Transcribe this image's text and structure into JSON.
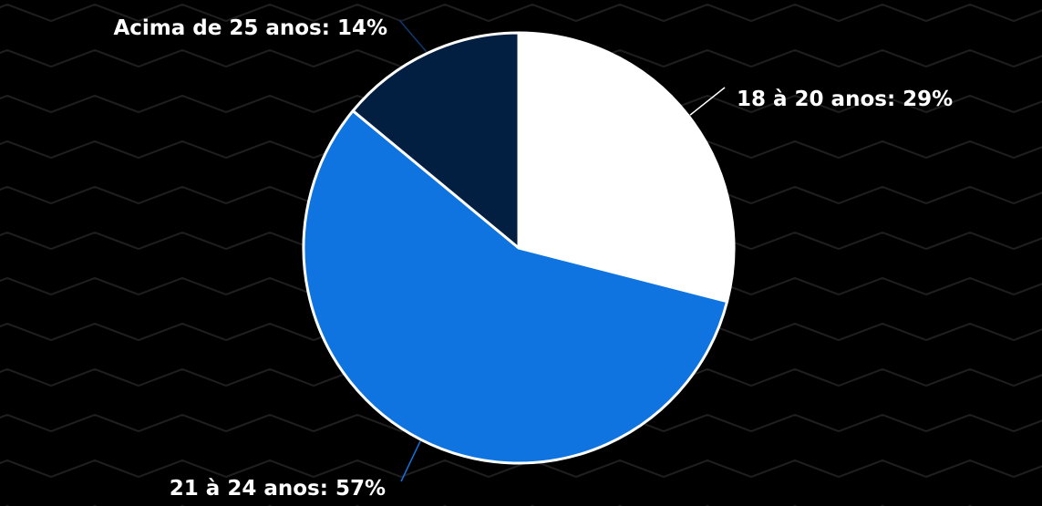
{
  "colors": {
    "background": "#000000",
    "zigzag": "#1f1f1f",
    "slice_outline": "#ffffff",
    "label_text": "#ffffff"
  },
  "chart_data": {
    "type": "pie",
    "start_angle_deg": 0,
    "direction": "clockwise",
    "slices": [
      {
        "label": "18 à 20 anos: 29%",
        "category": "18 à 20 anos",
        "value": 29,
        "color": "#ffffff",
        "leader_color": "#ffffff"
      },
      {
        "label": "21 à 24 anos: 57%",
        "category": "21 à 24 anos",
        "value": 57,
        "color": "#0f74df",
        "leader_color": "#0f74df"
      },
      {
        "label": "Acima de 25 anos: 14%",
        "category": "Acima de 25 anos",
        "value": 14,
        "color": "#021e40",
        "leader_color": "#0b3a6e"
      }
    ]
  }
}
